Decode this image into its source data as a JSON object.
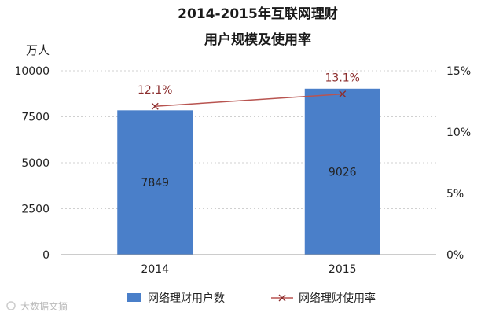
{
  "chart_data": {
    "type": "bar",
    "title_lines": [
      "2014-2015年互联网理财",
      "用户规模及使用率"
    ],
    "y_unit_label": "万人",
    "categories": [
      "2014",
      "2015"
    ],
    "left_axis": {
      "min": 0,
      "max": 10000,
      "ticks": [
        "0",
        "2500",
        "5000",
        "7500",
        "10000"
      ],
      "tick_values": [
        0,
        2500,
        5000,
        7500,
        10000
      ]
    },
    "right_axis": {
      "min": 0,
      "max": 15,
      "ticks": [
        "0%",
        "5%",
        "10%",
        "15%"
      ],
      "tick_values": [
        0,
        5,
        10,
        15
      ]
    },
    "series": [
      {
        "name": "网络理财用户数",
        "type": "bar",
        "axis": "left",
        "values": [
          7849,
          9026
        ],
        "labels": [
          "7849",
          "9026"
        ],
        "color": "#4a7fc9"
      },
      {
        "name": "网络理财使用率",
        "type": "line",
        "axis": "right",
        "values": [
          12.1,
          13.1
        ],
        "labels": [
          "12.1%",
          "13.1%"
        ],
        "color": "#b85450"
      }
    ],
    "grid": true,
    "legend_position": "bottom"
  },
  "watermark": {
    "text": "大数据文摘"
  }
}
